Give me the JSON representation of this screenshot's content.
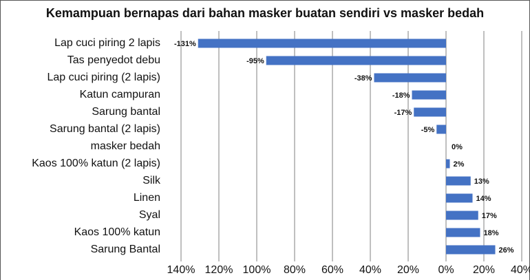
{
  "chart_data": {
    "type": "hbar",
    "title": "Kemampuan bernapas dari bahan masker buatan sendiri vs masker bedah",
    "categories": [
      "Lap cuci piring 2 lapis",
      "Tas penyedot debu",
      "Lap cuci piring (2 lapis)",
      "Katun campuran",
      "Sarung bantal",
      "Sarung bantal (2 lapis)",
      "masker bedah",
      "Kaos 100% katun (2 lapis)",
      "Silk",
      "Linen",
      "Syal",
      "Kaos 100% katun",
      "Sarung Bantal"
    ],
    "values": [
      -131,
      -95,
      -38,
      -18,
      -17,
      -5,
      0,
      2,
      13,
      14,
      17,
      18,
      26
    ],
    "value_labels": [
      "-131%",
      "-95%",
      "-38%",
      "-18%",
      "-17%",
      "-5%",
      "0%",
      "2%",
      "13%",
      "14%",
      "17%",
      "18%",
      "26%"
    ],
    "color": "#4472c4",
    "xlim": [
      -140,
      40
    ],
    "xticks": [
      {
        "value": -140,
        "label": "140%"
      },
      {
        "value": -120,
        "label": "120%"
      },
      {
        "value": -100,
        "label": "100%"
      },
      {
        "value": -80,
        "label": "80%"
      },
      {
        "value": -60,
        "label": "60%"
      },
      {
        "value": -40,
        "label": "40%"
      },
      {
        "value": -20,
        "label": "20%"
      },
      {
        "value": 0,
        "label": "0%"
      },
      {
        "value": 20,
        "label": "20%"
      },
      {
        "value": 40,
        "label": "40%"
      }
    ],
    "grid": true
  }
}
